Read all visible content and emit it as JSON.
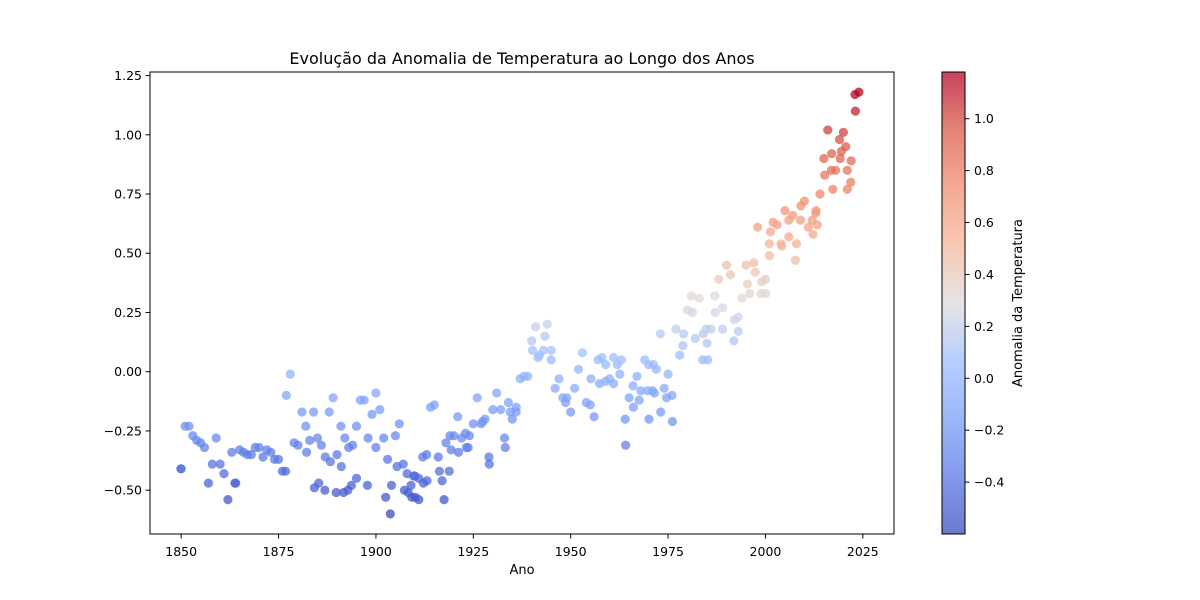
{
  "chart_data": {
    "type": "scatter",
    "title": "Evolução da Anomalia de Temperatura ao Longo dos Anos",
    "xlabel": "Ano",
    "ylabel": "",
    "xlim": [
      1842,
      2033
    ],
    "ylim": [
      -0.685,
      1.265
    ],
    "x_ticks": [
      1850,
      1875,
      1900,
      1925,
      1950,
      1975,
      2000,
      2025
    ],
    "y_ticks": [
      -0.5,
      -0.25,
      0.0,
      0.25,
      0.5,
      0.75,
      1.0,
      1.25
    ],
    "y_tick_labels": [
      "−0.50",
      "−0.25",
      "0.00",
      "0.25",
      "0.50",
      "0.75",
      "1.00",
      "1.25"
    ],
    "grid": false,
    "colormap": "coolwarm",
    "colorbar": {
      "label": "Anomalia da Temperatura",
      "range": [
        -0.6,
        1.18
      ],
      "ticks": [
        -0.4,
        -0.2,
        0.0,
        0.2,
        0.4,
        0.6,
        0.8,
        1.0
      ],
      "tick_labels": [
        "−0.4",
        "−0.2",
        "0.0",
        "0.2",
        "0.4",
        "0.6",
        "0.8",
        "1.0"
      ]
    },
    "points": [
      [
        1850,
        -0.41
      ],
      [
        1851,
        -0.23
      ],
      [
        1852,
        -0.23
      ],
      [
        1853,
        -0.27
      ],
      [
        1854,
        -0.29
      ],
      [
        1855,
        -0.3
      ],
      [
        1856,
        -0.32
      ],
      [
        1857,
        -0.47
      ],
      [
        1858,
        -0.39
      ],
      [
        1859,
        -0.28
      ],
      [
        1860,
        -0.39
      ],
      [
        1861,
        -0.43
      ],
      [
        1862,
        -0.54
      ],
      [
        1863,
        -0.34
      ],
      [
        1864,
        -0.47
      ],
      [
        1865,
        -0.33
      ],
      [
        1866,
        -0.34
      ],
      [
        1867,
        -0.35
      ],
      [
        1868,
        -0.35
      ],
      [
        1869,
        -0.32
      ],
      [
        1870,
        -0.32
      ],
      [
        1871,
        -0.36
      ],
      [
        1872,
        -0.33
      ],
      [
        1873,
        -0.34
      ],
      [
        1874,
        -0.37
      ],
      [
        1875,
        -0.37
      ],
      [
        1876,
        -0.42
      ],
      [
        1877,
        -0.1
      ],
      [
        1878,
        -0.01
      ],
      [
        1879,
        -0.3
      ],
      [
        1880,
        -0.31
      ],
      [
        1881,
        -0.17
      ],
      [
        1882,
        -0.23
      ],
      [
        1883,
        -0.29
      ],
      [
        1884,
        -0.17
      ],
      [
        1885,
        -0.28
      ],
      [
        1886,
        -0.31
      ],
      [
        1887,
        -0.36
      ],
      [
        1888,
        -0.17
      ],
      [
        1889,
        -0.11
      ],
      [
        1890,
        -0.35
      ],
      [
        1891,
        -0.23
      ],
      [
        1892,
        -0.28
      ],
      [
        1893,
        -0.32
      ],
      [
        1894,
        -0.31
      ],
      [
        1895,
        -0.23
      ],
      [
        1896,
        -0.12
      ],
      [
        1897,
        -0.12
      ],
      [
        1898,
        -0.28
      ],
      [
        1899,
        -0.18
      ],
      [
        1900,
        -0.09
      ],
      [
        1901,
        -0.16
      ],
      [
        1902,
        -0.28
      ],
      [
        1903,
        -0.37
      ],
      [
        1904,
        -0.48
      ],
      [
        1905,
        -0.27
      ],
      [
        1906,
        -0.22
      ],
      [
        1907,
        -0.39
      ],
      [
        1908,
        -0.43
      ],
      [
        1909,
        -0.48
      ],
      [
        1910,
        -0.44
      ],
      [
        1911,
        -0.45
      ],
      [
        1912,
        -0.36
      ],
      [
        1913,
        -0.35
      ],
      [
        1914,
        -0.15
      ],
      [
        1915,
        -0.14
      ],
      [
        1916,
        -0.36
      ],
      [
        1917,
        -0.46
      ],
      [
        1918,
        -0.3
      ],
      [
        1919,
        -0.27
      ],
      [
        1920,
        -0.27
      ],
      [
        1921,
        -0.19
      ],
      [
        1922,
        -0.28
      ],
      [
        1923,
        -0.26
      ],
      [
        1924,
        -0.27
      ],
      [
        1925,
        -0.22
      ],
      [
        1926,
        -0.11
      ],
      [
        1927,
        -0.22
      ],
      [
        1928,
        -0.2
      ],
      [
        1929,
        -0.36
      ],
      [
        1930,
        -0.16
      ],
      [
        1931,
        -0.09
      ],
      [
        1932,
        -0.16
      ],
      [
        1933,
        -0.28
      ],
      [
        1934,
        -0.13
      ],
      [
        1935,
        -0.2
      ],
      [
        1936,
        -0.15
      ],
      [
        1937,
        -0.03
      ],
      [
        1938,
        -0.02
      ],
      [
        1939,
        -0.02
      ],
      [
        1940,
        0.13
      ],
      [
        1941,
        0.19
      ],
      [
        1942,
        0.07
      ],
      [
        1943,
        0.09
      ],
      [
        1944,
        0.2
      ],
      [
        1945,
        0.09
      ],
      [
        1946,
        -0.07
      ],
      [
        1947,
        -0.03
      ],
      [
        1948,
        -0.11
      ],
      [
        1949,
        -0.11
      ],
      [
        1950,
        -0.17
      ],
      [
        1951,
        -0.07
      ],
      [
        1952,
        0.01
      ],
      [
        1953,
        0.08
      ],
      [
        1954,
        -0.13
      ],
      [
        1955,
        -0.14
      ],
      [
        1956,
        -0.19
      ],
      [
        1957,
        0.05
      ],
      [
        1958,
        0.06
      ],
      [
        1959,
        0.03
      ],
      [
        1960,
        -0.03
      ],
      [
        1961,
        0.06
      ],
      [
        1962,
        0.03
      ],
      [
        1963,
        0.05
      ],
      [
        1964,
        -0.2
      ],
      [
        1965,
        -0.11
      ],
      [
        1966,
        -0.06
      ],
      [
        1967,
        -0.02
      ],
      [
        1968,
        -0.08
      ],
      [
        1969,
        0.05
      ],
      [
        1970,
        0.03
      ],
      [
        1971,
        -0.08
      ],
      [
        1972,
        0.01
      ],
      [
        1973,
        0.16
      ],
      [
        1974,
        -0.07
      ],
      [
        1975,
        -0.01
      ],
      [
        1976,
        -0.1
      ],
      [
        1977,
        0.18
      ],
      [
        1978,
        0.07
      ],
      [
        1979,
        0.16
      ],
      [
        1980,
        0.26
      ],
      [
        1981,
        0.32
      ],
      [
        1982,
        0.14
      ],
      [
        1983,
        0.31
      ],
      [
        1984,
        0.16
      ],
      [
        1985,
        0.12
      ],
      [
        1986,
        0.18
      ],
      [
        1987,
        0.32
      ],
      [
        1988,
        0.39
      ],
      [
        1989,
        0.27
      ],
      [
        1990,
        0.45
      ],
      [
        1991,
        0.41
      ],
      [
        1992,
        0.22
      ],
      [
        1993,
        0.23
      ],
      [
        1994,
        0.31
      ],
      [
        1995,
        0.45
      ],
      [
        1996,
        0.33
      ],
      [
        1997,
        0.46
      ],
      [
        1998,
        0.61
      ],
      [
        1999,
        0.38
      ],
      [
        2000,
        0.39
      ],
      [
        2001,
        0.54
      ],
      [
        2002,
        0.63
      ],
      [
        2003,
        0.62
      ],
      [
        2004,
        0.54
      ],
      [
        2005,
        0.68
      ],
      [
        2006,
        0.64
      ],
      [
        2007,
        0.66
      ],
      [
        2008,
        0.54
      ],
      [
        2009,
        0.64
      ],
      [
        2010,
        0.72
      ],
      [
        2011,
        0.61
      ],
      [
        2012,
        0.64
      ],
      [
        2013,
        0.68
      ],
      [
        2014,
        0.75
      ],
      [
        2015,
        0.9
      ],
      [
        2016,
        1.02
      ],
      [
        2017,
        0.92
      ],
      [
        2018,
        0.85
      ],
      [
        2019,
        0.98
      ],
      [
        2020,
        1.01
      ],
      [
        2021,
        0.85
      ],
      [
        2022,
        0.89
      ],
      [
        2023,
        1.17
      ],
      [
        2024,
        1.18
      ],
      [
        1849.9,
        -0.41
      ],
      [
        1863.8,
        -0.47
      ],
      [
        1876.8,
        -0.42
      ],
      [
        1884.2,
        -0.49
      ],
      [
        1885.3,
        -0.47
      ],
      [
        1886.9,
        -0.5
      ],
      [
        1889.8,
        -0.51
      ],
      [
        1891.7,
        -0.51
      ],
      [
        1892.8,
        -0.5
      ],
      [
        1893.7,
        -0.48
      ],
      [
        1895.0,
        -0.45
      ],
      [
        1897.8,
        -0.48
      ],
      [
        1902.5,
        -0.53
      ],
      [
        1903.7,
        -0.6
      ],
      [
        1907.3,
        -0.5
      ],
      [
        1908.3,
        -0.51
      ],
      [
        1909.2,
        -0.53
      ],
      [
        1910.1,
        -0.53
      ],
      [
        1911.0,
        -0.54
      ],
      [
        1912.2,
        -0.47
      ],
      [
        1917.5,
        -0.54
      ],
      [
        1916.3,
        -0.42
      ],
      [
        1919.3,
        -0.33
      ],
      [
        1921.2,
        -0.34
      ],
      [
        1923.2,
        -0.32
      ],
      [
        1929.1,
        -0.39
      ],
      [
        1933.2,
        -0.32
      ],
      [
        1934.5,
        -0.17
      ],
      [
        1961.0,
        -0.05
      ],
      [
        1964.1,
        -0.31
      ],
      [
        1966.1,
        -0.15
      ],
      [
        1970.1,
        -0.2
      ],
      [
        1973.1,
        -0.17
      ],
      [
        1976.1,
        -0.21
      ],
      [
        1971.5,
        -0.09
      ],
      [
        1974.6,
        -0.11
      ],
      [
        1983.9,
        0.05
      ],
      [
        1985.2,
        0.05
      ],
      [
        1993.0,
        0.17
      ],
      [
        1998.8,
        0.33
      ],
      [
        2000.1,
        0.33
      ],
      [
        2001.0,
        0.49
      ],
      [
        2004.2,
        0.53
      ],
      [
        2007.7,
        0.47
      ],
      [
        2012.2,
        0.58
      ],
      [
        2017.3,
        0.77
      ],
      [
        2019.2,
        0.9
      ],
      [
        2021.0,
        0.77
      ],
      [
        2021.9,
        0.8
      ],
      [
        2023.1,
        1.1
      ],
      [
        1882.2,
        -0.34
      ],
      [
        1888.3,
        -0.38
      ],
      [
        1891.1,
        -0.4
      ],
      [
        1900.0,
        -0.32
      ],
      [
        1905.4,
        -0.4
      ],
      [
        1909.7,
        -0.44
      ],
      [
        1913.1,
        -0.46
      ],
      [
        1918.8,
        -0.42
      ],
      [
        1923.7,
        -0.32
      ],
      [
        1927.4,
        -0.21
      ],
      [
        1936.0,
        -0.17
      ],
      [
        1941.6,
        0.06
      ],
      [
        1945.0,
        0.05
      ],
      [
        1948.7,
        -0.13
      ],
      [
        1955.2,
        -0.03
      ],
      [
        1959.0,
        -0.04
      ],
      [
        1962.6,
        -0.01
      ],
      [
        1967.6,
        -0.12
      ],
      [
        1969.8,
        -0.08
      ],
      [
        1978.8,
        0.11
      ],
      [
        1984.8,
        0.18
      ],
      [
        1989.0,
        0.18
      ],
      [
        1991.9,
        0.13
      ],
      [
        1995.4,
        0.37
      ],
      [
        1997.4,
        0.42
      ],
      [
        2001.3,
        0.59
      ],
      [
        2006.0,
        0.57
      ],
      [
        2009.1,
        0.7
      ],
      [
        2012.9,
        0.67
      ],
      [
        2015.2,
        0.83
      ],
      [
        2016.9,
        0.85
      ],
      [
        2019.5,
        0.93
      ],
      [
        2013.3,
        0.62
      ],
      [
        2020.6,
        0.95
      ],
      [
        1940.2,
        0.09
      ],
      [
        1943.4,
        0.15
      ],
      [
        1957.4,
        -0.05
      ],
      [
        1971.2,
        0.03
      ],
      [
        1981.3,
        0.25
      ],
      [
        1987.1,
        0.25
      ]
    ]
  }
}
